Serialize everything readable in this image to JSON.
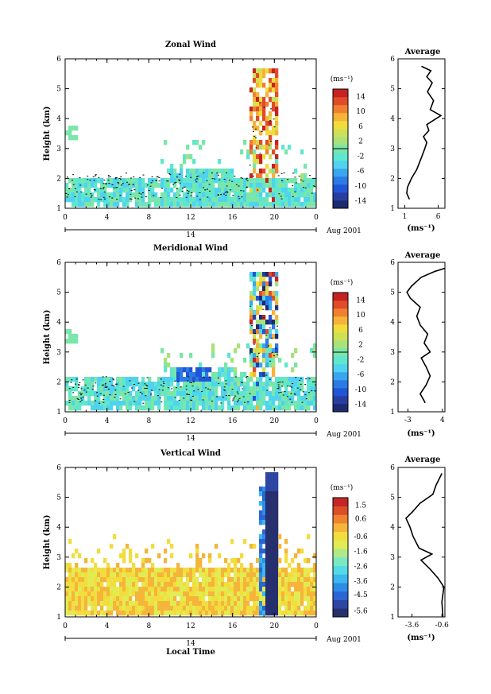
{
  "chart_data": [
    {
      "type": "heatmap",
      "title": "Zonal Wind",
      "xlabel": "",
      "ylabel": "Height (km)",
      "xlim": [
        0,
        24
      ],
      "ylim": [
        1,
        6
      ],
      "x_ticks": [
        "0",
        "4",
        "8",
        "12",
        "16",
        "20",
        "0"
      ],
      "y_ticks": [
        "1",
        "2",
        "3",
        "4",
        "5",
        "6"
      ],
      "date_day": "14",
      "date_label": "Aug 2001",
      "colorbar": {
        "unit": "(ms⁻¹)",
        "ticks": [
          "14",
          "10",
          "6",
          "2",
          "-2",
          "-6",
          "-10",
          "-14"
        ],
        "range": [
          -16,
          16
        ]
      },
      "profile": {
        "title": "Average",
        "xlabel": "(ms⁻¹)",
        "x_ticks": [
          "1",
          "6"
        ],
        "xlim": [
          0,
          7
        ],
        "points": [
          [
            1.7,
            1.3
          ],
          [
            1.3,
            1.5
          ],
          [
            1.4,
            1.7
          ],
          [
            2.0,
            2.0
          ],
          [
            2.8,
            2.3
          ],
          [
            3.5,
            2.7
          ],
          [
            4.0,
            3.0
          ],
          [
            4.3,
            3.2
          ],
          [
            3.8,
            3.4
          ],
          [
            4.6,
            3.6
          ],
          [
            4.3,
            3.8
          ],
          [
            6.4,
            4.1
          ],
          [
            4.8,
            4.3
          ],
          [
            5.3,
            4.6
          ],
          [
            4.4,
            4.9
          ],
          [
            5.1,
            5.2
          ],
          [
            4.3,
            5.4
          ],
          [
            4.9,
            5.6
          ],
          [
            3.5,
            5.75
          ]
        ]
      }
    },
    {
      "type": "heatmap",
      "title": "Meridional Wind",
      "xlabel": "",
      "ylabel": "Height (km)",
      "xlim": [
        0,
        24
      ],
      "ylim": [
        1,
        6
      ],
      "x_ticks": [
        "0",
        "4",
        "8",
        "12",
        "16",
        "20",
        "0"
      ],
      "y_ticks": [
        "1",
        "2",
        "3",
        "4",
        "5",
        "6"
      ],
      "date_day": "14",
      "date_label": "Aug 2001",
      "colorbar": {
        "unit": "(ms⁻¹)",
        "ticks": [
          "14",
          "10",
          "6",
          "2",
          "-2",
          "-6",
          "-10",
          "-14"
        ],
        "range": [
          -16,
          16
        ]
      },
      "profile": {
        "title": "Average",
        "xlabel": "(ms⁻¹)",
        "x_ticks": [
          "-3",
          "4"
        ],
        "xlim": [
          -5,
          4.5
        ],
        "points": [
          [
            0.5,
            1.3
          ],
          [
            -0.5,
            1.6
          ],
          [
            0.7,
            1.9
          ],
          [
            1.5,
            2.2
          ],
          [
            0.7,
            2.5
          ],
          [
            -0.3,
            2.8
          ],
          [
            1.5,
            3.0
          ],
          [
            0.3,
            3.3
          ],
          [
            1.0,
            3.6
          ],
          [
            -0.5,
            3.9
          ],
          [
            -1.2,
            4.2
          ],
          [
            -0.5,
            4.5
          ],
          [
            -2.5,
            4.8
          ],
          [
            -3.2,
            5.0
          ],
          [
            -2.3,
            5.2
          ],
          [
            -0.3,
            5.5
          ],
          [
            2.5,
            5.7
          ],
          [
            4.5,
            5.8
          ]
        ]
      }
    },
    {
      "type": "heatmap",
      "title": "Vertical Wind",
      "xlabel": "Local Time",
      "ylabel": "Height (km)",
      "xlim": [
        0,
        24
      ],
      "ylim": [
        1,
        6
      ],
      "x_ticks": [
        "0",
        "4",
        "8",
        "12",
        "16",
        "20",
        "0"
      ],
      "y_ticks": [
        "1",
        "2",
        "3",
        "4",
        "5",
        "6"
      ],
      "date_day": "14",
      "date_label": "Aug 2001",
      "colorbar": {
        "unit": "(ms⁻¹)",
        "ticks": [
          "1.5",
          "0.6",
          "-0.6",
          "-1.6",
          "-2.6",
          "-3.6",
          "-4.5",
          "-5.6"
        ],
        "range": [
          -6,
          2
        ]
      },
      "profile": {
        "title": "Average",
        "xlabel": "(ms⁻¹)",
        "x_ticks": [
          "-3.6",
          "-0.6"
        ],
        "xlim": [
          -5,
          -0.3
        ],
        "points": [
          [
            -0.5,
            1.0
          ],
          [
            -0.6,
            1.5
          ],
          [
            -0.4,
            2.0
          ],
          [
            -1.0,
            2.3
          ],
          [
            -1.8,
            2.6
          ],
          [
            -2.7,
            2.9
          ],
          [
            -1.6,
            3.1
          ],
          [
            -2.9,
            3.3
          ],
          [
            -3.5,
            3.7
          ],
          [
            -3.8,
            4.0
          ],
          [
            -4.2,
            4.3
          ],
          [
            -3.6,
            4.5
          ],
          [
            -2.8,
            4.8
          ],
          [
            -1.5,
            5.1
          ],
          [
            -1.2,
            5.4
          ],
          [
            -0.6,
            5.8
          ]
        ]
      }
    }
  ]
}
